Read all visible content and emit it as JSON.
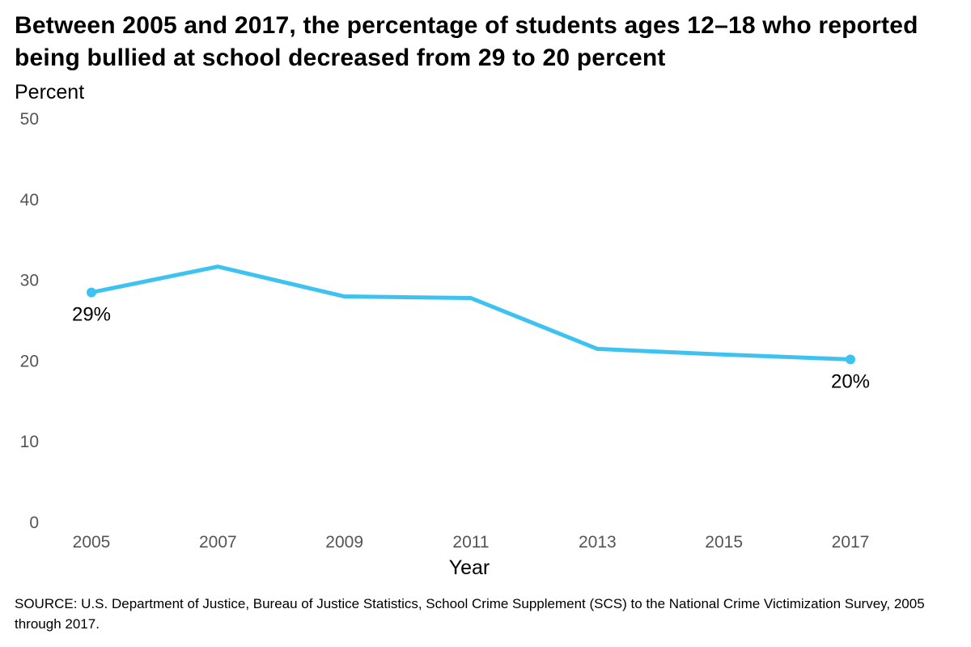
{
  "chart_data": {
    "type": "line",
    "title": "Between 2005 and 2017, the percentage of students ages 12–18 who reported being bullied at school decreased from 29 to 20 percent",
    "ylabel": "Percent",
    "xlabel": "Year",
    "ylim": [
      0,
      50
    ],
    "yticks": [
      "0",
      "10",
      "20",
      "30",
      "40",
      "50"
    ],
    "x": [
      "2005",
      "2007",
      "2009",
      "2011",
      "2013",
      "2015",
      "2017"
    ],
    "series": [
      {
        "values": [
          28.5,
          31.7,
          28.0,
          27.8,
          21.5,
          20.8,
          20.2
        ]
      }
    ],
    "annotations": [
      {
        "x": "2005",
        "text": "29%"
      },
      {
        "x": "2017",
        "text": "20%"
      }
    ],
    "grid": false,
    "line_color": "#3ec3f0"
  },
  "source": "SOURCE: U.S. Department of Justice, Bureau of Justice Statistics, School Crime Supplement (SCS) to the National Crime Victimization Survey, 2005 through 2017."
}
